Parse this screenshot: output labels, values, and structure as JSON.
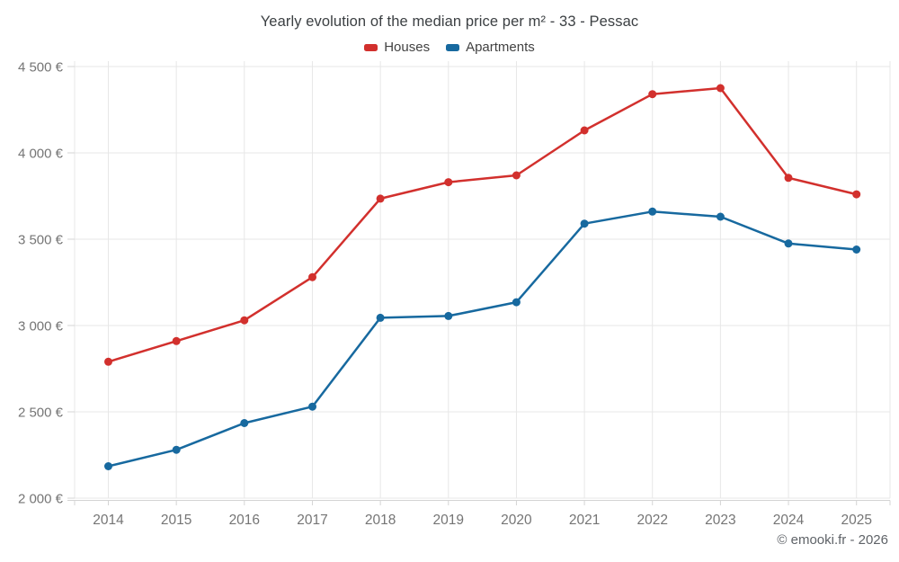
{
  "title": "Yearly evolution of the median price per m² - 33 - Pessac",
  "legend": {
    "items": [
      {
        "id": "houses",
        "label": "Houses",
        "color": "#d2302d"
      },
      {
        "id": "apartments",
        "label": "Apartments",
        "color": "#17699f"
      }
    ]
  },
  "footer": {
    "credit": "© emooki.fr - 2026"
  },
  "chart_data": {
    "type": "line",
    "title": "Yearly evolution of the median price per m² - 33 - Pessac",
    "categories": [
      "2014",
      "2015",
      "2016",
      "2017",
      "2018",
      "2019",
      "2020",
      "2021",
      "2022",
      "2023",
      "2024",
      "2025"
    ],
    "series": [
      {
        "name": "Houses",
        "color": "#d2302d",
        "values": [
          2790,
          2910,
          3030,
          3280,
          3735,
          3830,
          3870,
          4130,
          4340,
          4375,
          3855,
          3760
        ]
      },
      {
        "name": "Apartments",
        "color": "#17699f",
        "values": [
          2185,
          2280,
          2435,
          2530,
          3045,
          3055,
          3135,
          3590,
          3660,
          3630,
          3475,
          3440
        ]
      }
    ],
    "xlabel": "",
    "ylabel": "",
    "ylim": [
      2000,
      4500
    ],
    "ytick_step": 500,
    "yticks": [
      {
        "value": 2000,
        "label": "2 000 €"
      },
      {
        "value": 2500,
        "label": "2 500 €"
      },
      {
        "value": 3000,
        "label": "3 000 €"
      },
      {
        "value": 3500,
        "label": "3 500 €"
      },
      {
        "value": 4000,
        "label": "4 000 €"
      },
      {
        "value": 4500,
        "label": "4 500 €"
      }
    ],
    "grid": true,
    "legend_position": "top",
    "currency": "€"
  },
  "colors": {
    "houses": "#d2302d",
    "apartments": "#17699f",
    "gridline": "#e7e7e7",
    "axis_line": "#d4d4d4",
    "tick_label": "#757575",
    "title_text": "#3c4043",
    "legend_text": "#424242",
    "footer_text": "#5f6368",
    "background": "#ffffff"
  }
}
